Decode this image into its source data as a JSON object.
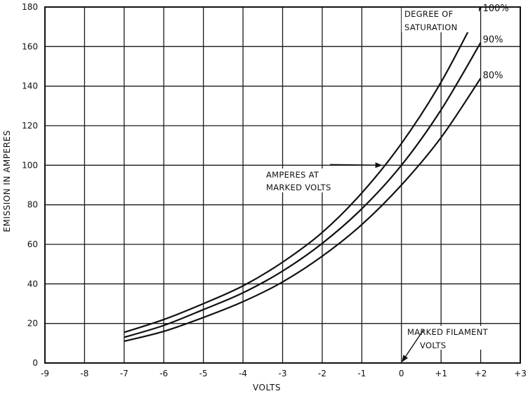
{
  "chart_data": {
    "type": "line",
    "xlabel": "VOLTS",
    "ylabel": "EMISSION IN AMPERES",
    "xlim": [
      -9,
      3
    ],
    "ylim": [
      0,
      180
    ],
    "x_ticks": [
      {
        "value": -9,
        "label": "-9"
      },
      {
        "value": -8,
        "label": "-8"
      },
      {
        "value": -7,
        "label": "-7"
      },
      {
        "value": -6,
        "label": "-6"
      },
      {
        "value": -5,
        "label": "-5"
      },
      {
        "value": -4,
        "label": "-4"
      },
      {
        "value": -3,
        "label": "-3"
      },
      {
        "value": -2,
        "label": "-2"
      },
      {
        "value": -1,
        "label": "-1"
      },
      {
        "value": 0,
        "label": "0"
      },
      {
        "value": 1,
        "label": "+1"
      },
      {
        "value": 2,
        "label": "+2"
      },
      {
        "value": 3,
        "label": "+3"
      }
    ],
    "y_ticks": [
      0,
      20,
      40,
      60,
      80,
      100,
      120,
      140,
      160,
      180
    ],
    "grid": true,
    "series": [
      {
        "name": "100%",
        "x": [
          -7,
          -6,
          -5,
          -4,
          -3,
          -2,
          -1,
          0,
          1,
          2
        ],
        "y": [
          15.5,
          22,
          30,
          39,
          51,
          66,
          86,
          111,
          142,
          180
        ]
      },
      {
        "name": "90%",
        "x": [
          -7,
          -6,
          -5,
          -4,
          -3,
          -2,
          -1,
          0,
          1,
          2
        ],
        "y": [
          13,
          19,
          27,
          35.5,
          46.5,
          60.5,
          78,
          100,
          128,
          162
        ]
      },
      {
        "name": "80%",
        "x": [
          -7,
          -6,
          -5,
          -4,
          -3,
          -2,
          -1,
          0,
          1,
          2
        ],
        "y": [
          11,
          16,
          23,
          31,
          41,
          54,
          70,
          90,
          114,
          144
        ]
      }
    ],
    "legend_title": [
      "DEGREE OF",
      "SATURATION"
    ],
    "annotations": [
      {
        "text": [
          "AMPERES AT",
          "MARKED VOLTS"
        ],
        "arrow_to": [
          -0.5,
          100
        ]
      },
      {
        "text": [
          "MARKED FILAMENT",
          "VOLTS"
        ],
        "arrow_to": [
          0,
          0
        ]
      }
    ]
  }
}
